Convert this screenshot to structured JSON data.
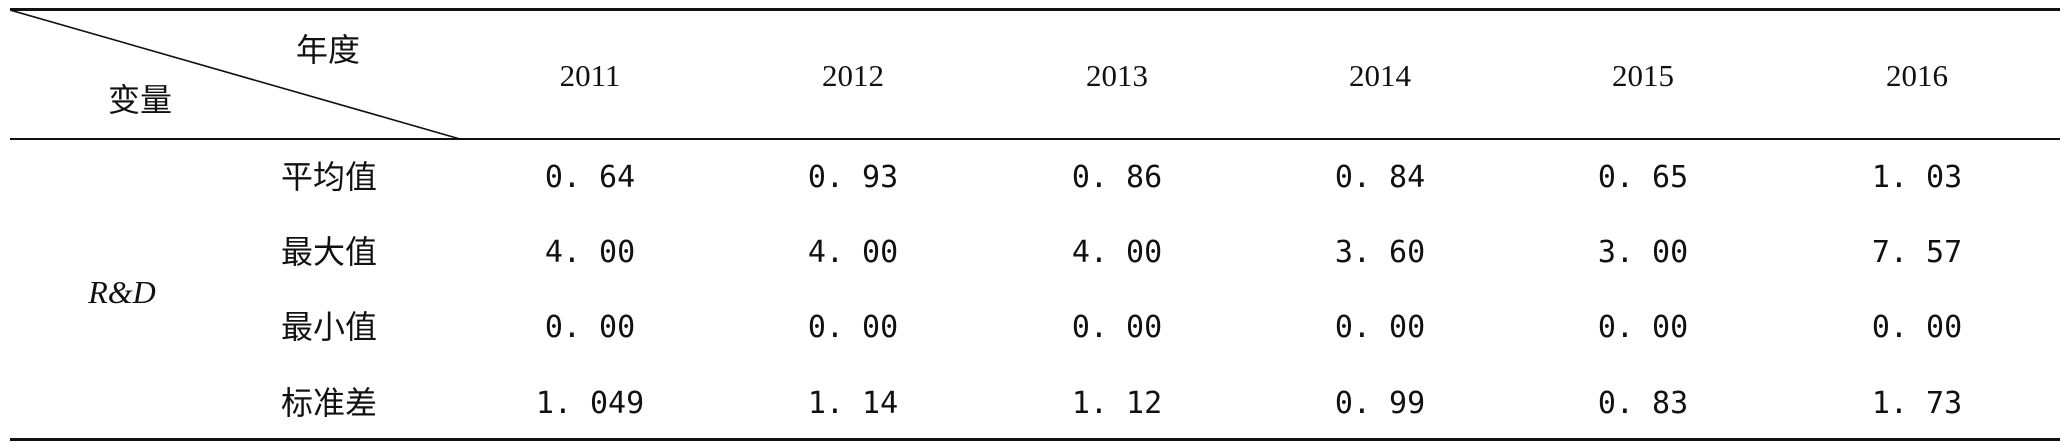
{
  "table": {
    "corner": {
      "column_label": "年度",
      "row_label": "变量"
    },
    "years": [
      "2011",
      "2012",
      "2013",
      "2014",
      "2015",
      "2016"
    ],
    "variable": "R&D",
    "rows": [
      {
        "stat": "平均值",
        "values": [
          "0. 64",
          "0. 93",
          "0. 86",
          "0. 84",
          "0. 65",
          "1. 03"
        ]
      },
      {
        "stat": "最大值",
        "values": [
          "4. 00",
          "4. 00",
          "4. 00",
          "3. 60",
          "3. 00",
          "7. 57"
        ]
      },
      {
        "stat": "最小值",
        "values": [
          "0. 00",
          "0. 00",
          "0. 00",
          "0. 00",
          "0. 00",
          "0. 00"
        ]
      },
      {
        "stat": "标准差",
        "values": [
          "1. 049",
          "1. 14",
          "1. 12",
          "0. 99",
          "0. 83",
          "1. 73"
        ]
      }
    ]
  }
}
